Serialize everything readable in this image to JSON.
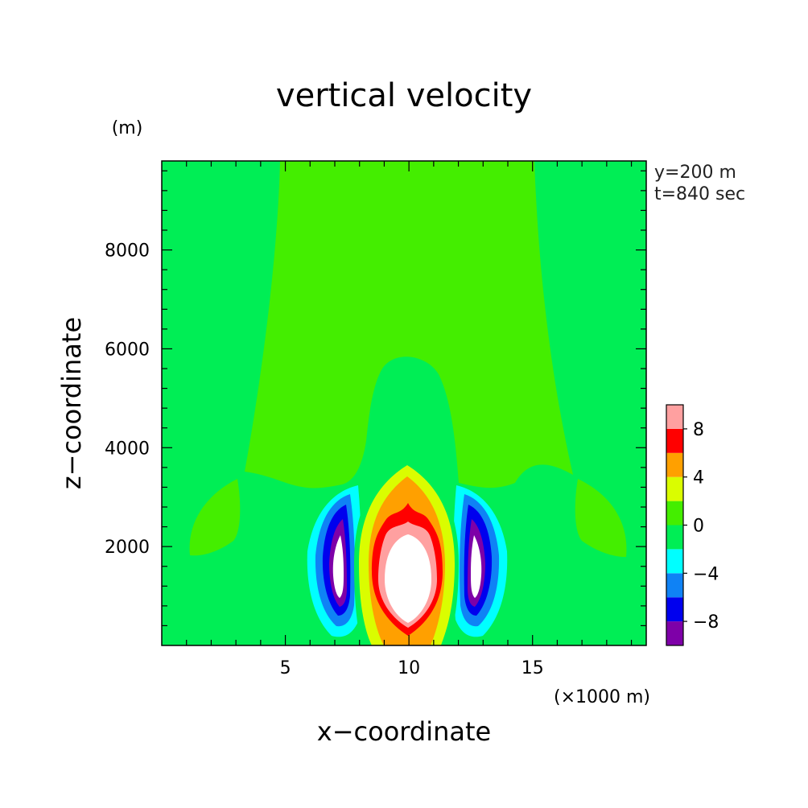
{
  "chart_data": {
    "type": "heatmap",
    "title": "vertical velocity",
    "xlabel": "x−coordinate",
    "ylabel": "z−coordinate",
    "x_unit": "(×1000 m)",
    "y_unit": "(m)",
    "annotations": [
      "y=200 m",
      "t=840 sec"
    ],
    "xlim": [
      0,
      19.6
    ],
    "ylim": [
      0,
      9800
    ],
    "x_ticks": [
      5,
      10,
      15
    ],
    "x_tick_labels": [
      "5",
      "10",
      "15"
    ],
    "y_ticks": [
      2000,
      4000,
      6000,
      8000
    ],
    "y_tick_labels": [
      "2000",
      "4000",
      "6000",
      "8000"
    ],
    "colorbar": {
      "levels": [
        -10,
        -8,
        -6,
        -4,
        -2,
        0,
        2,
        4,
        6,
        8,
        10
      ],
      "labeled_ticks": [
        -8,
        -4,
        0,
        4,
        8
      ],
      "tick_labels": [
        "−8",
        "−4",
        "0",
        "4",
        "8"
      ],
      "colors": [
        "#7e00a8",
        "#0000ee",
        "#0f82f5",
        "#00ffff",
        "#00ee55",
        "#44ee00",
        "#dafd00",
        "#ffa000",
        "#ff0000",
        "#ffa0a0"
      ],
      "extend_max_color": "#ffffff"
    },
    "field_regions": [
      {
        "name": "background",
        "range": [
          -2,
          0
        ],
        "color": "#00ee55"
      },
      {
        "name": "upper-plume",
        "range": [
          0,
          2
        ],
        "color": "#44ee00"
      },
      {
        "name": "left-side-lobe",
        "range": [
          0,
          2
        ],
        "color": "#44ee00"
      },
      {
        "name": "right-side-lobe",
        "range": [
          0,
          2
        ],
        "color": "#44ee00"
      },
      {
        "name": "updraft-core",
        "max": 10,
        "color": "#ffffff"
      },
      {
        "name": "left-downdraft",
        "min": -10,
        "color": "#ffffff"
      },
      {
        "name": "right-downdraft",
        "min": -10,
        "color": "#ffffff"
      }
    ]
  }
}
